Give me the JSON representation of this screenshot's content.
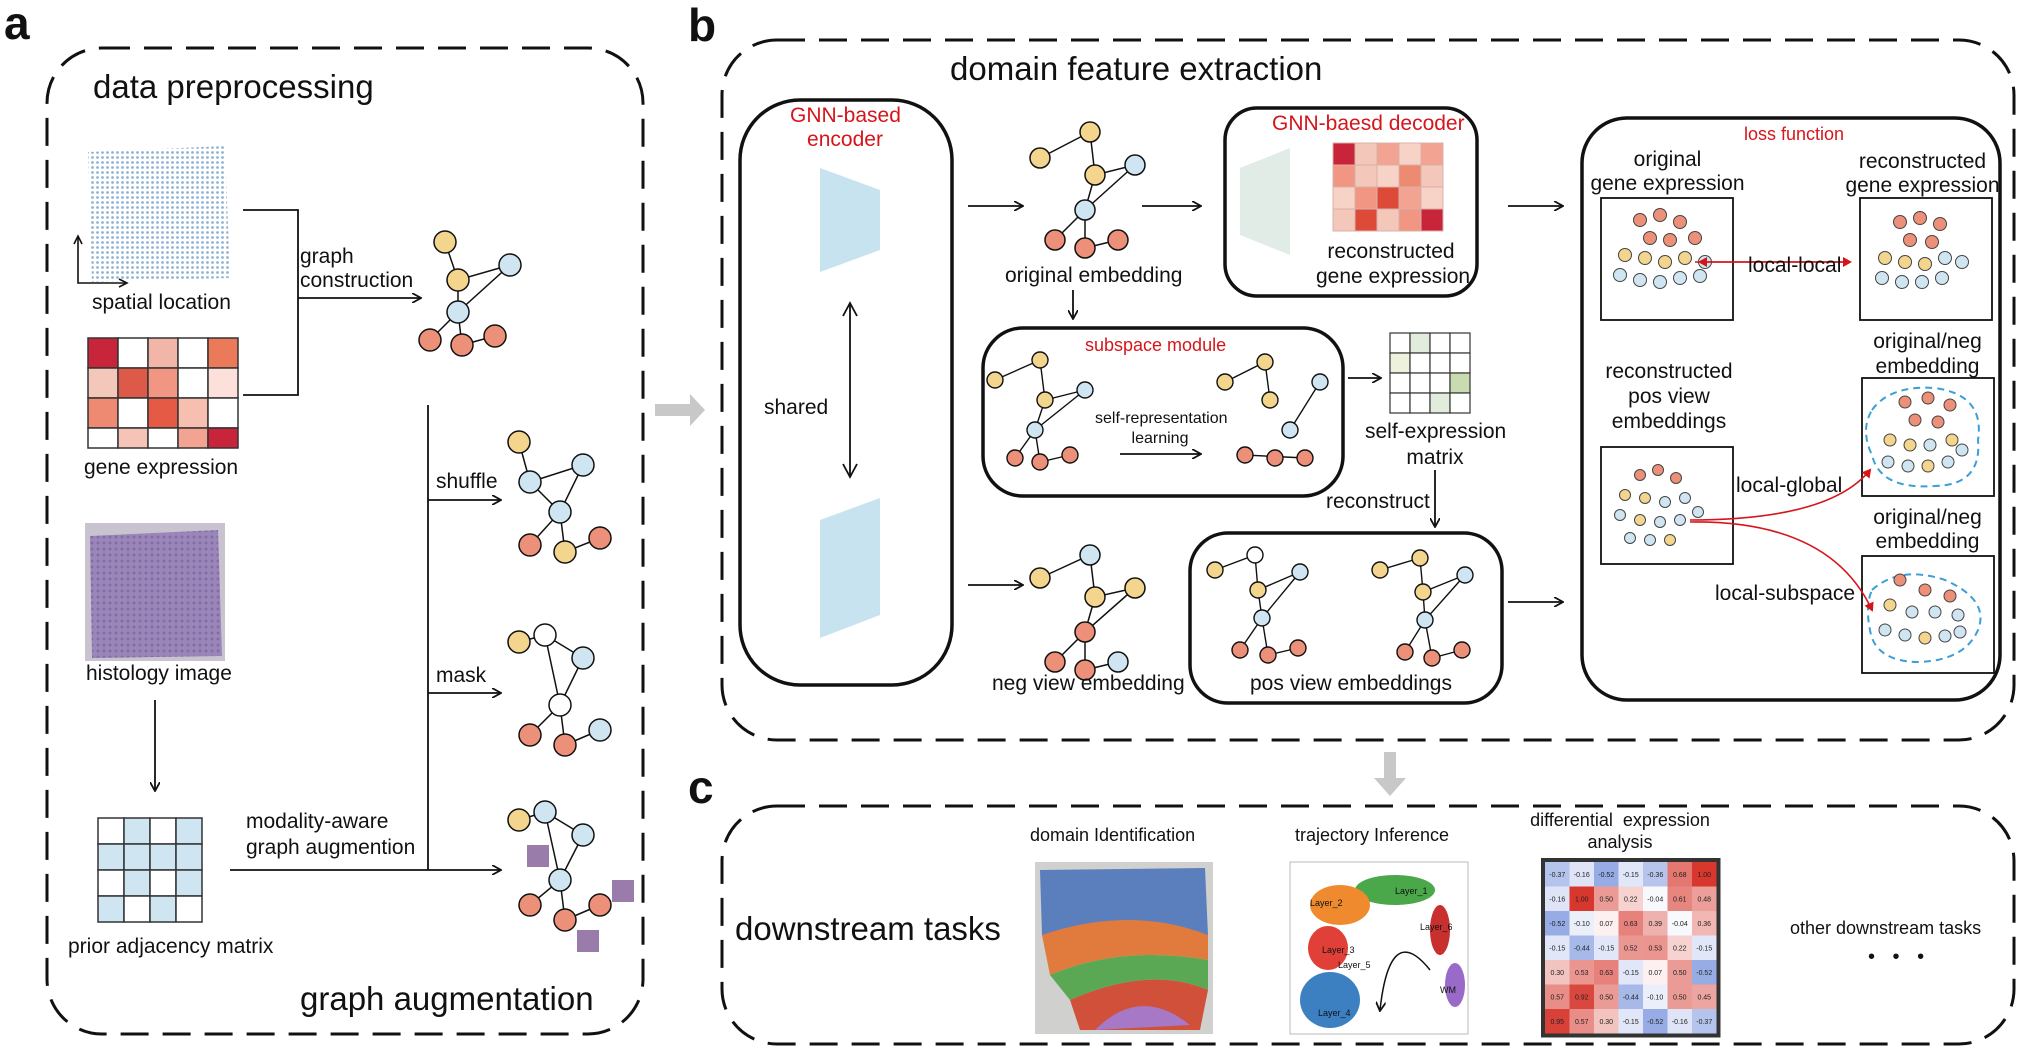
{
  "panels": {
    "a": {
      "letter": "a",
      "title_top": "data preprocessing",
      "title_bottom": "graph augmentation",
      "spatial_label": "spatial location",
      "gene_label": "gene expression",
      "histology_label": "histology image",
      "prior_label": "prior adjacency matrix",
      "graph_construction": [
        "graph",
        "construction"
      ],
      "shuffle": "shuffle",
      "mask": "mask",
      "modality_aug": [
        "modality-aware",
        "graph augmention"
      ]
    },
    "b": {
      "letter": "b",
      "title": "domain feature extraction",
      "encoder": [
        "GNN-based",
        "encoder"
      ],
      "shared": "shared",
      "original_embedding": "original embedding",
      "decoder": "GNN-baesd decoder",
      "recon_gene": [
        "reconstructed",
        "gene expression"
      ],
      "subspace_module": "subspace module",
      "self_rep": [
        "self-representation",
        "learning"
      ],
      "self_expr": [
        "self-expression",
        "matrix"
      ],
      "reconstruct": "reconstruct",
      "neg_view": "neg view embedding",
      "pos_view": "pos view embeddings",
      "loss": {
        "title": "loss function",
        "orig_gene": [
          "original",
          "gene expression"
        ],
        "recon_gene": [
          "reconstructed",
          "gene expression"
        ],
        "local_local": "local-local",
        "recon_pos": [
          "reconstructed",
          "pos view",
          "embeddings"
        ],
        "orig_neg_1": [
          "original/neg",
          "embedding"
        ],
        "local_global": "local-global",
        "orig_neg_2": [
          "original/neg",
          "embedding"
        ],
        "local_subspace": "local-subspace"
      }
    },
    "c": {
      "letter": "c",
      "title": "downstream tasks",
      "domain_id": "domain Identification",
      "trajectory": "trajectory Inference",
      "diff_expr": [
        "differential  expression",
        "analysis"
      ],
      "other": "other downstream tasks",
      "ellipsis": "• • •",
      "layer_labels": [
        "Layer_1",
        "Layer_2",
        "Layer_3",
        "Layer_4",
        "Layer_5",
        "Layer_6",
        "WM"
      ],
      "heatmap_values": [
        [
          "-0.37",
          "-0.16",
          "-0.52",
          "-0.15",
          "-0.36",
          "0.68",
          "1.00"
        ],
        [
          "-0.16",
          "1.00",
          "0.50",
          "0.22",
          "-0.04",
          "0.61",
          "0.48"
        ],
        [
          "-0.52",
          "-0.10",
          "0.07",
          "0.63",
          "0.39",
          "-0.04",
          "0.36"
        ],
        [
          "-0.15",
          "-0.44",
          "-0.15",
          "0.52",
          "0.53",
          "0.22",
          "-0.15"
        ],
        [
          "0.30",
          "0.53",
          "0.63",
          "-0.15",
          "0.07",
          "0.50",
          "-0.52"
        ],
        [
          "0.57",
          "0.92",
          "0.50",
          "-0.44",
          "-0.10",
          "0.50",
          "0.45"
        ],
        [
          "0.95",
          "0.57",
          "0.30",
          "-0.15",
          "-0.52",
          "-0.16",
          "-0.37"
        ]
      ]
    }
  },
  "colors": {
    "red_text": "#d6151b",
    "node_yellow": "#f4d58d",
    "node_blue": "#cfe6f2",
    "node_red": "#ec9079",
    "encoder_blue": "#c6e3ef",
    "decoder_green": "#e2ece6",
    "arrow_gray": "#c8c8c8",
    "heat_red": "#d83a37",
    "heat_blue": "#3f60c0"
  }
}
